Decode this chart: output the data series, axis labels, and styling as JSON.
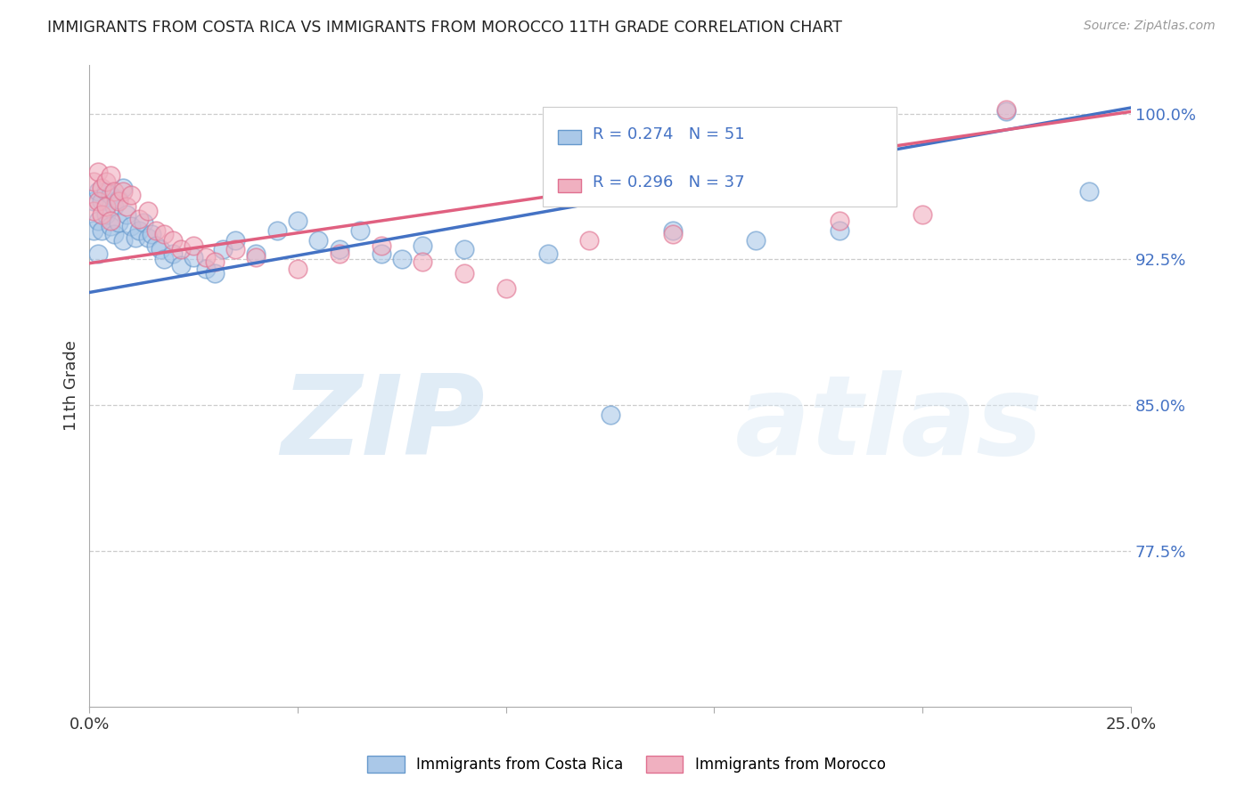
{
  "title": "IMMIGRANTS FROM COSTA RICA VS IMMIGRANTS FROM MOROCCO 11TH GRADE CORRELATION CHART",
  "source": "Source: ZipAtlas.com",
  "ylabel": "11th Grade",
  "x_min": 0.0,
  "x_max": 0.25,
  "y_min": 0.695,
  "y_max": 1.025,
  "y_tick_right": [
    0.775,
    0.85,
    0.925,
    1.0
  ],
  "y_tick_right_labels": [
    "77.5%",
    "85.0%",
    "92.5%",
    "100.0%"
  ],
  "costa_rica_color": "#aac8e8",
  "morocco_color": "#f0b0c0",
  "costa_rica_edge_color": "#6699cc",
  "morocco_edge_color": "#e07090",
  "costa_rica_line_color": "#4472c4",
  "morocco_line_color": "#e06080",
  "R_costa_rica": 0.274,
  "N_costa_rica": 51,
  "R_morocco": 0.296,
  "N_morocco": 37,
  "watermark_zip": "ZIP",
  "watermark_atlas": "atlas",
  "grid_color": "#cccccc",
  "background_color": "#ffffff",
  "legend_label_cr": "Immigrants from Costa Rica",
  "legend_label_mo": "Immigrants from Morocco",
  "cr_trend_x0": 0.0,
  "cr_trend_y0": 0.908,
  "cr_trend_x1": 0.25,
  "cr_trend_y1": 1.003,
  "mo_trend_x0": 0.0,
  "mo_trend_y0": 0.923,
  "mo_trend_x1": 0.25,
  "mo_trend_y1": 1.001,
  "cr_x": [
    0.001,
    0.001,
    0.002,
    0.002,
    0.002,
    0.003,
    0.003,
    0.004,
    0.004,
    0.005,
    0.005,
    0.006,
    0.006,
    0.007,
    0.007,
    0.008,
    0.008,
    0.009,
    0.01,
    0.011,
    0.012,
    0.013,
    0.014,
    0.015,
    0.016,
    0.017,
    0.018,
    0.02,
    0.022,
    0.025,
    0.028,
    0.03,
    0.032,
    0.035,
    0.04,
    0.045,
    0.05,
    0.055,
    0.06,
    0.065,
    0.07,
    0.075,
    0.08,
    0.09,
    0.11,
    0.125,
    0.14,
    0.16,
    0.18,
    0.22,
    0.24
  ],
  "cr_y": [
    0.955,
    0.94,
    0.96,
    0.945,
    0.928,
    0.955,
    0.94,
    0.96,
    0.948,
    0.958,
    0.942,
    0.952,
    0.938,
    0.956,
    0.944,
    0.962,
    0.935,
    0.948,
    0.942,
    0.936,
    0.94,
    0.944,
    0.936,
    0.938,
    0.932,
    0.93,
    0.925,
    0.928,
    0.922,
    0.926,
    0.92,
    0.918,
    0.93,
    0.935,
    0.928,
    0.94,
    0.945,
    0.935,
    0.93,
    0.94,
    0.928,
    0.925,
    0.932,
    0.93,
    0.928,
    0.845,
    0.94,
    0.935,
    0.94,
    1.001,
    0.96
  ],
  "mo_x": [
    0.001,
    0.001,
    0.002,
    0.002,
    0.003,
    0.003,
    0.004,
    0.004,
    0.005,
    0.005,
    0.006,
    0.007,
    0.008,
    0.009,
    0.01,
    0.012,
    0.014,
    0.016,
    0.018,
    0.02,
    0.022,
    0.025,
    0.028,
    0.03,
    0.035,
    0.04,
    0.05,
    0.06,
    0.07,
    0.08,
    0.09,
    0.1,
    0.12,
    0.14,
    0.18,
    0.2,
    0.22
  ],
  "mo_y": [
    0.965,
    0.95,
    0.97,
    0.955,
    0.962,
    0.948,
    0.965,
    0.952,
    0.968,
    0.945,
    0.96,
    0.955,
    0.96,
    0.952,
    0.958,
    0.946,
    0.95,
    0.94,
    0.938,
    0.935,
    0.93,
    0.932,
    0.926,
    0.924,
    0.93,
    0.926,
    0.92,
    0.928,
    0.932,
    0.924,
    0.918,
    0.91,
    0.935,
    0.938,
    0.945,
    0.948,
    1.002
  ]
}
